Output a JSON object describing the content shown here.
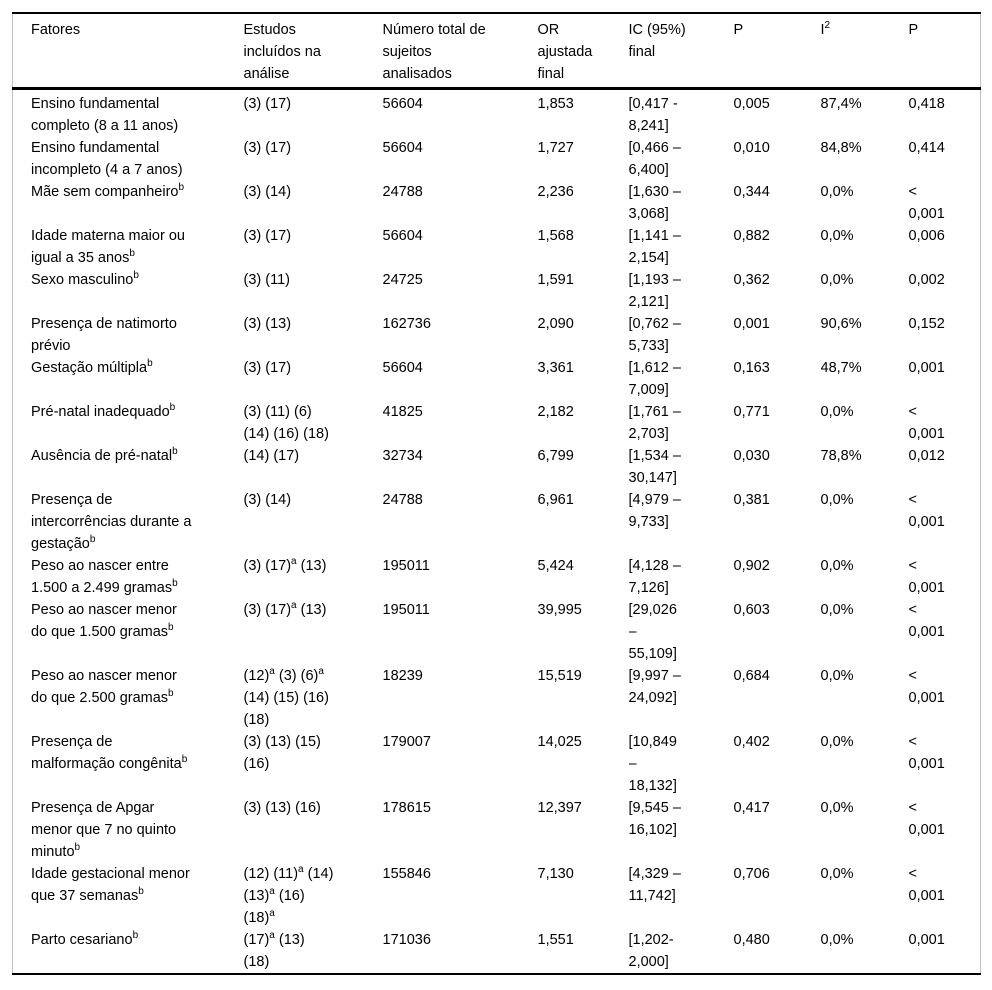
{
  "colors": {
    "background": "#ffffff",
    "text": "#000000",
    "rule_heavy": "#000000",
    "rule_side": "#c2c2c2"
  },
  "table": {
    "columns": [
      {
        "id": "fatores",
        "label": "Fatores"
      },
      {
        "id": "estudos",
        "label": "Estudos\nincluídos na\nanálise"
      },
      {
        "id": "sujeitos",
        "label": "Número total de\nsujeitos\nanalisados"
      },
      {
        "id": "or",
        "label": "OR\najustada\nfinal"
      },
      {
        "id": "ic",
        "label": "IC (95%)\nfinal"
      },
      {
        "id": "p",
        "label": "P"
      },
      {
        "id": "i2",
        "label": "I^2"
      },
      {
        "id": "p2",
        "label": "P"
      }
    ],
    "rows": [
      [
        "Ensino fundamental\ncompleto (8 a 11 anos)",
        "(3) (17)",
        "56604",
        "1,853",
        "[0,417 -\n8,241]",
        "0,005",
        "87,4%",
        "0,418"
      ],
      [
        "Ensino fundamental\nincompleto (4 a 7 anos)",
        "(3) (17)",
        "56604",
        "1,727",
        "[0,466 –\n6,400]",
        "0,010",
        "84,8%",
        "0,414"
      ],
      [
        "Mãe sem companheiro^b",
        "(3) (14)",
        "24788",
        "2,236",
        "[1,630 –\n3,068]",
        "0,344",
        "0,0%",
        "<\n0,001"
      ],
      [
        "Idade materna maior ou\nigual a 35 anos^b",
        "(3) (17)",
        "56604",
        "1,568",
        "[1,141 –\n2,154]",
        "0,882",
        "0,0%",
        "0,006"
      ],
      [
        "Sexo masculino^b",
        "(3) (11)",
        "24725",
        "1,591",
        "[1,193 –\n2,121]",
        "0,362",
        "0,0%",
        "0,002"
      ],
      [
        "Presença de natimorto\nprévio",
        "(3) (13)",
        "162736",
        "2,090",
        "[0,762 –\n5,733]",
        "0,001",
        "90,6%",
        "0,152"
      ],
      [
        "Gestação múltipla^b",
        "(3) (17)",
        "56604",
        "3,361",
        "[1,612 –\n7,009]",
        "0,163",
        "48,7%",
        "0,001"
      ],
      [
        "Pré-natal inadequado^b",
        "(3) (11) (6)\n(14) (16) (18)",
        "41825",
        "2,182",
        "[1,761 –\n2,703]",
        "0,771",
        "0,0%",
        "<\n0,001"
      ],
      [
        "Ausência de pré-natal^b",
        "(14) (17)",
        "32734",
        "6,799",
        "[1,534 –\n30,147]",
        "0,030",
        "78,8%",
        "0,012"
      ],
      [
        "Presença de\nintercorrências durante a\ngestação^b",
        "(3) (14)",
        "24788",
        "6,961",
        "[4,979 –\n9,733]",
        "0,381",
        "0,0%",
        "<\n0,001"
      ],
      [
        "Peso ao nascer entre\n1.500 a 2.499 gramas^b",
        "(3) (17)^a (13)",
        "195011",
        "5,424",
        "[4,128 –\n7,126]",
        "0,902",
        "0,0%",
        "<\n0,001"
      ],
      [
        "Peso ao nascer menor\ndo que 1.500 gramas^b",
        "(3) (17)^a (13)",
        "195011",
        "39,995",
        "[29,026\n–\n55,109]",
        "0,603",
        "0,0%",
        "<\n0,001"
      ],
      [
        "Peso ao nascer menor\ndo que 2.500 gramas^b",
        "(12)^a (3) (6)^a\n(14) (15) (16)\n(18)",
        "18239",
        "15,519",
        "[9,997 –\n24,092]",
        "0,684",
        "0,0%",
        "<\n0,001"
      ],
      [
        "Presença de\nmalformação congênita^b",
        "(3) (13) (15)\n(16)",
        "179007",
        "14,025",
        "[10,849\n–\n18,132]",
        "0,402",
        "0,0%",
        "<\n0,001"
      ],
      [
        "Presença de Apgar\nmenor que 7 no quinto\nminuto^b",
        "(3) (13) (16)",
        "178615",
        "12,397",
        "[9,545 –\n16,102]",
        "0,417",
        "0,0%",
        "<\n0,001"
      ],
      [
        "Idade gestacional menor\nque 37 semanas^b",
        "(12) (11)^a (14)\n(13)^a (16)\n(18)^a",
        "155846",
        "7,130",
        "[4,329 –\n11,742]",
        "0,706",
        "0,0%",
        "<\n0,001"
      ],
      [
        "Parto cesariano^b",
        "(17)^a (13)\n(18)",
        "171036",
        "1,551",
        "[1,202-\n2,000]",
        "0,480",
        "0,0%",
        "0,001"
      ]
    ]
  }
}
